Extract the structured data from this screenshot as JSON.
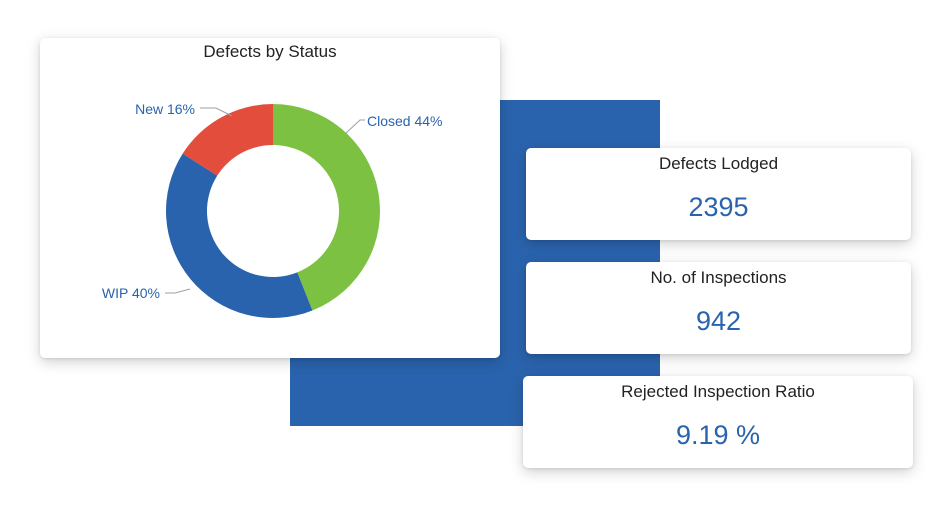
{
  "chart_data": {
    "type": "pie",
    "title": "Defects by Status",
    "categories": [
      "Closed",
      "WIP",
      "New"
    ],
    "values": [
      44,
      40,
      16
    ],
    "unit": "%",
    "labels": [
      "Closed 44%",
      "WIP 40%",
      "New 16%"
    ],
    "colors": [
      "#7dc142",
      "#2a63ad",
      "#e34d3c"
    ],
    "label_color": "#2a63ad",
    "style": "donut"
  },
  "kpis": [
    {
      "label": "Defects Lodged",
      "value": "2395"
    },
    {
      "label": "No. of Inspections",
      "value": "942"
    },
    {
      "label": "Rejected Inspection Ratio",
      "value": "9.19 %"
    }
  ]
}
